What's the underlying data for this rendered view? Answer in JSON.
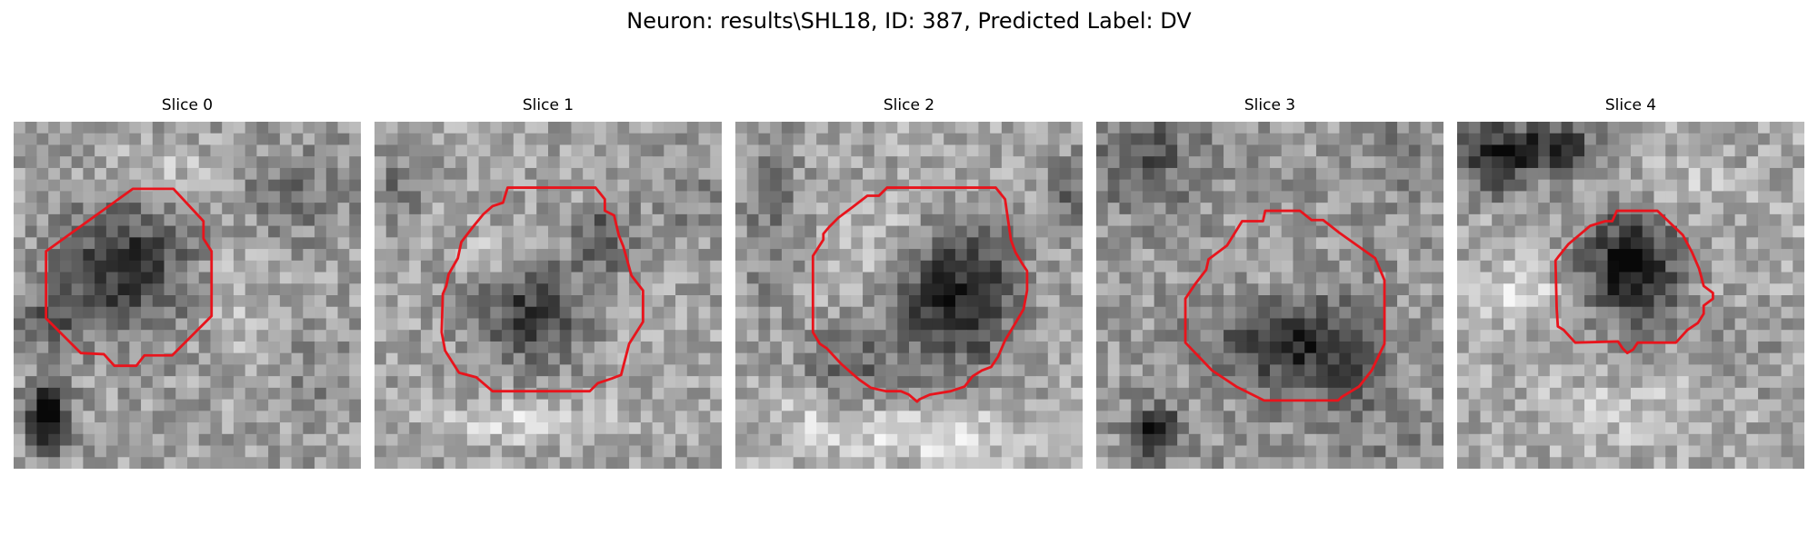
{
  "figure": {
    "title": "Neuron: results\\SHL18, ID: 387, Predicted Label: DV"
  },
  "colors": {
    "contour": "#e8141c"
  },
  "panels": [
    {
      "title": "Slice 0"
    },
    {
      "title": "Slice 1"
    },
    {
      "title": "Slice 2"
    },
    {
      "title": "Slice 3"
    },
    {
      "title": "Slice 4"
    }
  ]
}
